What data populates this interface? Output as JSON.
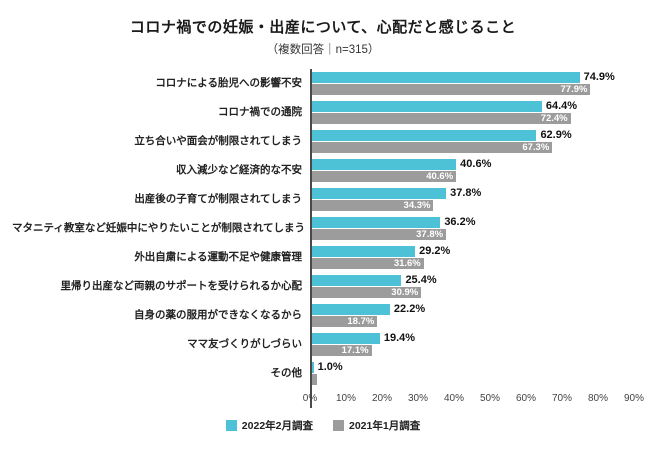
{
  "header": {
    "title": "コロナ禍での妊娠・出産について、心配だと感じること",
    "subtitle": "（複数回答｜n=315）"
  },
  "chart_data": {
    "type": "bar",
    "orientation": "horizontal",
    "title": "コロナ禍での妊娠・出産について、心配だと感じること",
    "subtitle": "（複数回答｜n=315）",
    "n": 315,
    "xlim": [
      0,
      90
    ],
    "x_ticks": [
      "0%",
      "10%",
      "20%",
      "30%",
      "40%",
      "50%",
      "60%",
      "70%",
      "80%",
      "90%"
    ],
    "grid": false,
    "legend_position": "bottom",
    "categories": [
      "コロナによる胎児への影響不安",
      "コロナ禍での通院",
      "立ち合いや面会が制限されてしまう",
      "収入減少など経済的な不安",
      "出産後の子育てが制限されてしまう",
      "マタニティ教室など妊娠中にやりたいことが制限されてしまう",
      "外出自粛による運動不足や健康管理",
      "里帰り出産など両親のサポートを受けられるか心配",
      "自身の薬の服用ができなくなるから",
      "ママ友づくりがしづらい",
      "その他"
    ],
    "series": [
      {
        "name": "2022年2月調査",
        "color": "#4dc2d6",
        "label_placement": "outside",
        "values": [
          74.9,
          64.4,
          62.9,
          40.6,
          37.8,
          36.2,
          29.2,
          25.4,
          22.2,
          19.4,
          1.0
        ],
        "labels": [
          "74.9%",
          "64.4%",
          "62.9%",
          "40.6%",
          "37.8%",
          "36.2%",
          "29.2%",
          "25.4%",
          "22.2%",
          "19.4%",
          "1.0%"
        ]
      },
      {
        "name": "2021年1月調査",
        "color": "#9c9c9c",
        "label_placement": "inside",
        "values": [
          77.9,
          72.4,
          67.3,
          40.6,
          34.3,
          37.8,
          31.6,
          30.9,
          18.7,
          17.1,
          1.9
        ],
        "labels": [
          "77.9%",
          "72.4%",
          "67.3%",
          "40.6%",
          "34.3%",
          "37.8%",
          "31.6%",
          "30.9%",
          "18.7%",
          "17.1%",
          ""
        ]
      }
    ]
  }
}
